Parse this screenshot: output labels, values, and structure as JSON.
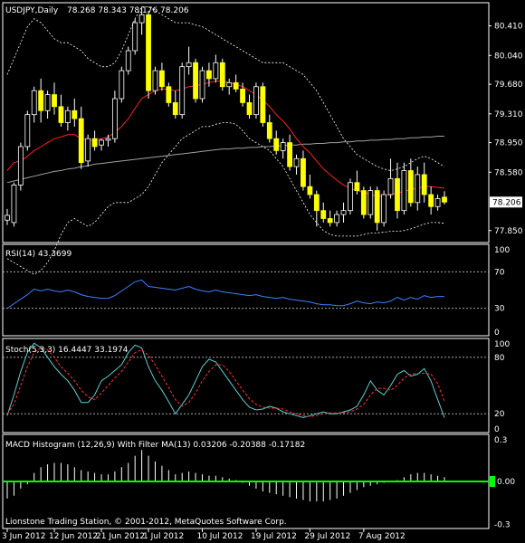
{
  "chart_data": [
    {
      "type": "candlestick",
      "title": "USDJPY,Daily",
      "ohlc_readout": "78.268 78.343 78.176 78.206",
      "current_price": "78.206",
      "y_ticks": [
        "80.410",
        "80.040",
        "79.680",
        "79.310",
        "78.950",
        "78.580",
        "77.850"
      ],
      "ylim": [
        77.7,
        80.7
      ],
      "x_labels": [
        "3 Jun 2012",
        "12 Jun 2012",
        "21 Jun 2012",
        "1 Jul 2012",
        "10 Jul 2012",
        "19 Jul 2012",
        "29 Jul 2012",
        "7 Aug 2012"
      ],
      "grid": false,
      "candles": [
        {
          "o": 77.98,
          "h": 78.12,
          "l": 77.92,
          "c": 78.04
        },
        {
          "o": 77.95,
          "h": 78.45,
          "l": 77.9,
          "c": 78.42
        },
        {
          "o": 78.42,
          "h": 78.95,
          "l": 78.35,
          "c": 78.9
        },
        {
          "o": 78.9,
          "h": 79.35,
          "l": 78.85,
          "c": 79.3
        },
        {
          "o": 79.3,
          "h": 79.65,
          "l": 79.2,
          "c": 79.6
        },
        {
          "o": 79.6,
          "h": 79.75,
          "l": 79.2,
          "c": 79.35
        },
        {
          "o": 79.35,
          "h": 79.6,
          "l": 79.25,
          "c": 79.55
        },
        {
          "o": 79.55,
          "h": 79.7,
          "l": 79.3,
          "c": 79.4
        },
        {
          "o": 79.4,
          "h": 79.55,
          "l": 79.15,
          "c": 79.2
        },
        {
          "o": 79.2,
          "h": 79.4,
          "l": 79.1,
          "c": 79.35
        },
        {
          "o": 79.35,
          "h": 79.5,
          "l": 79.15,
          "c": 79.25
        },
        {
          "o": 79.25,
          "h": 79.4,
          "l": 78.62,
          "c": 78.7
        },
        {
          "o": 78.72,
          "h": 79.05,
          "l": 78.65,
          "c": 79.0
        },
        {
          "o": 79.0,
          "h": 79.1,
          "l": 78.85,
          "c": 78.9
        },
        {
          "o": 78.92,
          "h": 79.0,
          "l": 78.85,
          "c": 78.98
        },
        {
          "o": 78.98,
          "h": 79.05,
          "l": 78.9,
          "c": 79.0
        },
        {
          "o": 79.0,
          "h": 79.6,
          "l": 78.95,
          "c": 79.5
        },
        {
          "o": 79.5,
          "h": 79.9,
          "l": 79.45,
          "c": 79.85
        },
        {
          "o": 79.85,
          "h": 80.15,
          "l": 79.8,
          "c": 80.1
        },
        {
          "o": 80.1,
          "h": 80.5,
          "l": 80.05,
          "c": 80.45
        },
        {
          "o": 80.45,
          "h": 80.65,
          "l": 80.3,
          "c": 80.55
        },
        {
          "o": 80.55,
          "h": 80.6,
          "l": 79.5,
          "c": 79.6
        },
        {
          "o": 79.6,
          "h": 79.9,
          "l": 79.55,
          "c": 79.85
        },
        {
          "o": 79.85,
          "h": 79.95,
          "l": 79.6,
          "c": 79.65
        },
        {
          "o": 79.65,
          "h": 79.7,
          "l": 79.4,
          "c": 79.45
        },
        {
          "o": 79.45,
          "h": 79.6,
          "l": 79.25,
          "c": 79.3
        },
        {
          "o": 79.3,
          "h": 79.95,
          "l": 79.25,
          "c": 79.9
        },
        {
          "o": 79.9,
          "h": 80.15,
          "l": 79.8,
          "c": 79.95
        },
        {
          "o": 79.95,
          "h": 80.0,
          "l": 79.45,
          "c": 79.5
        },
        {
          "o": 79.5,
          "h": 79.9,
          "l": 79.45,
          "c": 79.85
        },
        {
          "o": 79.85,
          "h": 79.95,
          "l": 79.65,
          "c": 79.75
        },
        {
          "o": 79.75,
          "h": 80.05,
          "l": 79.7,
          "c": 79.95
        },
        {
          "o": 79.95,
          "h": 80.0,
          "l": 79.6,
          "c": 79.65
        },
        {
          "o": 79.65,
          "h": 79.75,
          "l": 79.55,
          "c": 79.7
        },
        {
          "o": 79.7,
          "h": 79.8,
          "l": 79.58,
          "c": 79.62
        },
        {
          "o": 79.62,
          "h": 79.7,
          "l": 79.4,
          "c": 79.45
        },
        {
          "o": 79.45,
          "h": 79.55,
          "l": 79.25,
          "c": 79.3
        },
        {
          "o": 79.3,
          "h": 79.7,
          "l": 79.25,
          "c": 79.65
        },
        {
          "o": 79.65,
          "h": 79.7,
          "l": 79.15,
          "c": 79.2
        },
        {
          "o": 79.2,
          "h": 79.3,
          "l": 78.95,
          "c": 79.0
        },
        {
          "o": 79.0,
          "h": 79.1,
          "l": 78.8,
          "c": 78.85
        },
        {
          "o": 78.85,
          "h": 79.0,
          "l": 78.75,
          "c": 78.95
        },
        {
          "o": 78.95,
          "h": 79.05,
          "l": 78.6,
          "c": 78.65
        },
        {
          "o": 78.65,
          "h": 78.8,
          "l": 78.55,
          "c": 78.75
        },
        {
          "o": 78.75,
          "h": 78.85,
          "l": 78.35,
          "c": 78.4
        },
        {
          "o": 78.4,
          "h": 78.55,
          "l": 78.25,
          "c": 78.3
        },
        {
          "o": 78.3,
          "h": 78.35,
          "l": 77.9,
          "c": 78.1
        },
        {
          "o": 78.1,
          "h": 78.2,
          "l": 77.95,
          "c": 78.0
        },
        {
          "o": 78.0,
          "h": 78.1,
          "l": 77.9,
          "c": 77.95
        },
        {
          "o": 77.95,
          "h": 78.1,
          "l": 77.9,
          "c": 78.05
        },
        {
          "o": 78.05,
          "h": 78.2,
          "l": 77.95,
          "c": 78.1
        },
        {
          "o": 78.1,
          "h": 78.5,
          "l": 78.05,
          "c": 78.45
        },
        {
          "o": 78.45,
          "h": 78.6,
          "l": 78.3,
          "c": 78.35
        },
        {
          "o": 78.35,
          "h": 78.4,
          "l": 78.0,
          "c": 78.05
        },
        {
          "o": 78.05,
          "h": 78.4,
          "l": 78.0,
          "c": 78.35
        },
        {
          "o": 78.35,
          "h": 78.4,
          "l": 77.85,
          "c": 77.95
        },
        {
          "o": 77.95,
          "h": 78.35,
          "l": 77.9,
          "c": 78.3
        },
        {
          "o": 78.3,
          "h": 78.75,
          "l": 78.25,
          "c": 78.5
        },
        {
          "o": 78.5,
          "h": 78.7,
          "l": 78.0,
          "c": 78.1
        },
        {
          "o": 78.1,
          "h": 78.7,
          "l": 78.05,
          "c": 78.6
        },
        {
          "o": 78.6,
          "h": 78.75,
          "l": 78.15,
          "c": 78.2
        },
        {
          "o": 78.2,
          "h": 78.65,
          "l": 78.1,
          "c": 78.55
        },
        {
          "o": 78.55,
          "h": 78.7,
          "l": 78.2,
          "c": 78.3
        },
        {
          "o": 78.3,
          "h": 78.4,
          "l": 78.05,
          "c": 78.15
        },
        {
          "o": 78.15,
          "h": 78.3,
          "l": 78.1,
          "c": 78.25
        },
        {
          "o": 78.268,
          "h": 78.343,
          "l": 78.176,
          "c": 78.206
        }
      ],
      "ma_red": [
        78.6,
        78.7,
        78.72,
        78.78,
        78.85,
        78.9,
        78.95,
        79.0,
        79.02,
        79.05,
        79.05,
        79.0,
        78.98,
        78.98,
        79.0,
        79.02,
        79.08,
        79.15,
        79.25,
        79.38,
        79.5,
        79.55,
        79.6,
        79.62,
        79.62,
        79.6,
        79.62,
        79.65,
        79.66,
        79.68,
        79.7,
        79.72,
        79.72,
        79.7,
        79.68,
        79.65,
        79.6,
        79.55,
        79.48,
        79.4,
        79.3,
        79.22,
        79.12,
        79.0,
        78.9,
        78.82,
        78.72,
        78.62,
        78.55,
        78.48,
        78.42,
        78.38,
        78.35,
        78.33,
        78.3,
        78.28,
        78.28,
        78.3,
        78.32,
        78.34,
        78.36,
        78.38,
        78.4,
        78.4,
        78.39,
        78.38
      ],
      "ma_gray": [
        78.45,
        78.47,
        78.49,
        78.51,
        78.53,
        78.55,
        78.57,
        78.59,
        78.6,
        78.62,
        78.63,
        78.65,
        78.66,
        78.68,
        78.69,
        78.7,
        78.71,
        78.72,
        78.73,
        78.74,
        78.75,
        78.76,
        78.77,
        78.78,
        78.79,
        78.8,
        78.81,
        78.82,
        78.83,
        78.84,
        78.85,
        78.86,
        78.87,
        78.87,
        78.88,
        78.88,
        78.89,
        78.89,
        78.9,
        78.9,
        78.91,
        78.91,
        78.92,
        78.92,
        78.93,
        78.93,
        78.94,
        78.94,
        78.95,
        78.95,
        78.96,
        78.96,
        78.97,
        78.97,
        78.98,
        78.98,
        78.99,
        78.99,
        79.0,
        79.0,
        79.01,
        79.01,
        79.02,
        79.02,
        79.03,
        79.03
      ],
      "band_upper": [
        79.8,
        80.0,
        80.2,
        80.4,
        80.5,
        80.45,
        80.35,
        80.25,
        80.2,
        80.2,
        80.15,
        80.1,
        80.0,
        79.95,
        79.9,
        79.9,
        79.95,
        80.1,
        80.3,
        80.5,
        80.65,
        80.65,
        80.6,
        80.55,
        80.5,
        80.45,
        80.45,
        80.45,
        80.42,
        80.4,
        80.35,
        80.3,
        80.25,
        80.2,
        80.15,
        80.1,
        80.05,
        80.0,
        79.95,
        79.95,
        79.95,
        79.95,
        79.9,
        79.85,
        79.8,
        79.7,
        79.6,
        79.45,
        79.3,
        79.15,
        79.0,
        78.9,
        78.8,
        78.75,
        78.7,
        78.65,
        78.62,
        78.6,
        78.62,
        78.65,
        78.7,
        78.75,
        78.78,
        78.75,
        78.7,
        78.65
      ],
      "band_lower": [
        77.5,
        77.45,
        77.4,
        77.35,
        77.3,
        77.35,
        77.45,
        77.6,
        77.8,
        77.95,
        78.0,
        77.95,
        77.9,
        77.95,
        78.05,
        78.15,
        78.2,
        78.2,
        78.2,
        78.25,
        78.3,
        78.4,
        78.55,
        78.7,
        78.8,
        78.9,
        79.0,
        79.05,
        79.1,
        79.15,
        79.15,
        79.18,
        79.2,
        79.2,
        79.18,
        79.1,
        79.0,
        78.95,
        78.9,
        78.85,
        78.75,
        78.65,
        78.5,
        78.35,
        78.2,
        78.05,
        77.95,
        77.85,
        77.8,
        77.78,
        77.78,
        77.78,
        77.78,
        77.8,
        77.82,
        77.82,
        77.83,
        77.84,
        77.84,
        77.85,
        77.87,
        77.9,
        77.93,
        77.95,
        77.95,
        77.94
      ]
    },
    {
      "type": "line",
      "title": "RSI(14) 43.3699",
      "y_ticks": [
        "100",
        "70",
        "30",
        "0"
      ],
      "ylim": [
        0,
        100
      ],
      "levels": [
        70,
        30
      ],
      "series": [
        {
          "values": [
            30,
            35,
            40,
            45,
            51,
            49,
            51,
            49,
            48,
            50,
            48,
            45,
            43,
            42,
            41,
            41,
            44,
            49,
            54,
            59,
            61,
            54,
            53,
            52,
            51,
            50,
            52,
            54,
            51,
            49,
            48,
            50,
            48,
            47,
            46,
            45,
            44,
            45,
            43,
            42,
            41,
            42,
            40,
            39,
            38,
            37,
            35,
            34,
            34,
            33,
            33,
            35,
            38,
            36,
            35,
            37,
            36,
            38,
            42,
            39,
            42,
            40,
            44,
            42,
            43,
            43
          ]
        }
      ]
    },
    {
      "type": "line",
      "title": "Stoch(5,3,3) 16.4447 33.1974",
      "y_ticks": [
        "100",
        "80",
        "20",
        "0"
      ],
      "ylim": [
        0,
        100
      ],
      "levels": [
        80,
        20
      ],
      "series": [
        {
          "color": "#5ccfcf",
          "values": [
            18,
            40,
            65,
            85,
            95,
            90,
            80,
            70,
            62,
            55,
            45,
            32,
            32,
            40,
            55,
            60,
            66,
            72,
            85,
            93,
            90,
            70,
            55,
            45,
            33,
            20,
            30,
            40,
            55,
            70,
            78,
            75,
            65,
            55,
            45,
            35,
            27,
            24,
            25,
            28,
            26,
            22,
            20,
            18,
            16,
            18,
            20,
            22,
            20,
            20,
            22,
            24,
            28,
            40,
            55,
            45,
            40,
            50,
            62,
            66,
            60,
            62,
            68,
            55,
            35,
            16
          ]
        },
        {
          "color": "#ff3030",
          "values": [
            20,
            30,
            50,
            70,
            85,
            90,
            88,
            80,
            70,
            63,
            55,
            45,
            38,
            35,
            42,
            50,
            58,
            65,
            75,
            85,
            88,
            82,
            72,
            60,
            48,
            35,
            28,
            32,
            42,
            55,
            65,
            72,
            72,
            65,
            55,
            45,
            36,
            30,
            27,
            26,
            26,
            25,
            22,
            20,
            18,
            17,
            18,
            20,
            21,
            21,
            21,
            22,
            25,
            30,
            40,
            47,
            47,
            45,
            50,
            58,
            62,
            63,
            63,
            62,
            52,
            33
          ]
        }
      ]
    },
    {
      "type": "histogram",
      "title": "MACD Histogram (12,26,9) With Filter MA(13) 0.03206 -0.20388 -0.17182",
      "y_ticks": [
        "0.3",
        "0.00",
        "-0.3"
      ],
      "current_value": "0.00",
      "ylim": [
        -0.33,
        0.33
      ],
      "values": [
        -0.12,
        -0.1,
        -0.05,
        -0.02,
        0.06,
        0.1,
        0.12,
        0.13,
        0.13,
        0.12,
        0.1,
        0.08,
        0.07,
        0.06,
        0.05,
        0.05,
        0.07,
        0.1,
        0.13,
        0.18,
        0.22,
        0.18,
        0.14,
        0.11,
        0.08,
        0.05,
        0.06,
        0.07,
        0.06,
        0.05,
        0.04,
        0.04,
        0.03,
        0.02,
        0.01,
        -0.01,
        -0.03,
        -0.05,
        -0.07,
        -0.08,
        -0.09,
        -0.1,
        -0.11,
        -0.12,
        -0.13,
        -0.14,
        -0.14,
        -0.14,
        -0.13,
        -0.12,
        -0.1,
        -0.08,
        -0.06,
        -0.04,
        -0.03,
        -0.02,
        -0.01,
        0.0,
        0.01,
        0.03,
        0.05,
        0.06,
        0.06,
        0.05,
        0.04,
        0.03
      ]
    }
  ],
  "footer": {
    "copyright": "Lionstone Trading Station, © 2001-2012, MetaQuotes Software Corp."
  }
}
